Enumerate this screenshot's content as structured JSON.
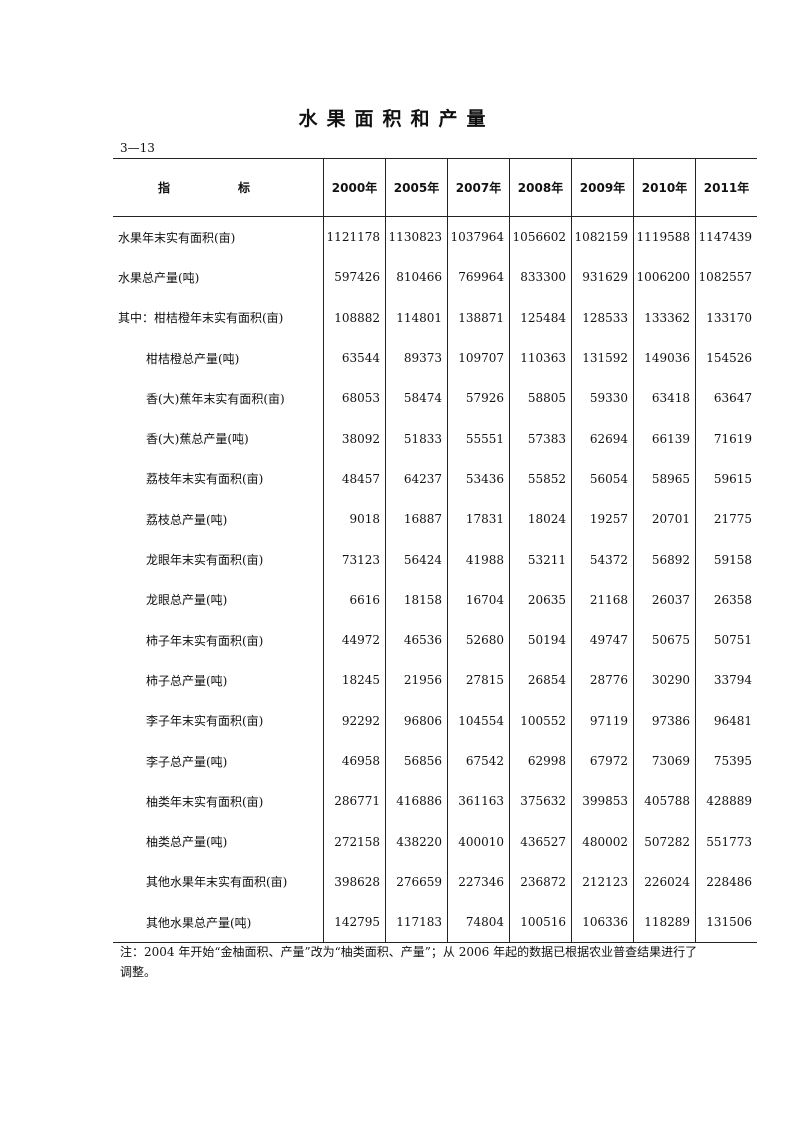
{
  "title": "水果面积和产量",
  "table_code": "3—13",
  "table": {
    "headers": [
      "指　标",
      "2000年",
      "2005年",
      "2007年",
      "2008年",
      "2009年",
      "2010年",
      "2011年"
    ],
    "rows": [
      {
        "label": "水果年末实有面积(亩)",
        "sub": false,
        "values": [
          "1121178",
          "1130823",
          "1037964",
          "1056602",
          "1082159",
          "1119588",
          "1147439"
        ]
      },
      {
        "label": "水果总产量(吨)",
        "sub": false,
        "values": [
          "597426",
          "810466",
          "769964",
          "833300",
          "931629",
          "1006200",
          "1082557"
        ]
      },
      {
        "label": "其中：柑桔橙年末实有面积(亩)",
        "sub": false,
        "values": [
          "108882",
          "114801",
          "138871",
          "125484",
          "128533",
          "133362",
          "133170"
        ]
      },
      {
        "label": "柑桔橙总产量(吨)",
        "sub": true,
        "values": [
          "63544",
          "89373",
          "109707",
          "110363",
          "131592",
          "149036",
          "154526"
        ]
      },
      {
        "label": "香(大)蕉年末实有面积(亩)",
        "sub": true,
        "values": [
          "68053",
          "58474",
          "57926",
          "58805",
          "59330",
          "63418",
          "63647"
        ]
      },
      {
        "label": "香(大)蕉总产量(吨)",
        "sub": true,
        "values": [
          "38092",
          "51833",
          "55551",
          "57383",
          "62694",
          "66139",
          "71619"
        ]
      },
      {
        "label": "荔枝年末实有面积(亩)",
        "sub": true,
        "values": [
          "48457",
          "64237",
          "53436",
          "55852",
          "56054",
          "58965",
          "59615"
        ]
      },
      {
        "label": "荔枝总产量(吨)",
        "sub": true,
        "values": [
          "9018",
          "16887",
          "17831",
          "18024",
          "19257",
          "20701",
          "21775"
        ]
      },
      {
        "label": "龙眼年末实有面积(亩)",
        "sub": true,
        "values": [
          "73123",
          "56424",
          "41988",
          "53211",
          "54372",
          "56892",
          "59158"
        ]
      },
      {
        "label": "龙眼总产量(吨)",
        "sub": true,
        "values": [
          "6616",
          "18158",
          "16704",
          "20635",
          "21168",
          "26037",
          "26358"
        ]
      },
      {
        "label": "柿子年末实有面积(亩)",
        "sub": true,
        "values": [
          "44972",
          "46536",
          "52680",
          "50194",
          "49747",
          "50675",
          "50751"
        ]
      },
      {
        "label": "柿子总产量(吨)",
        "sub": true,
        "values": [
          "18245",
          "21956",
          "27815",
          "26854",
          "28776",
          "30290",
          "33794"
        ]
      },
      {
        "label": "李子年末实有面积(亩)",
        "sub": true,
        "values": [
          "92292",
          "96806",
          "104554",
          "100552",
          "97119",
          "97386",
          "96481"
        ]
      },
      {
        "label": "李子总产量(吨)",
        "sub": true,
        "values": [
          "46958",
          "56856",
          "67542",
          "62998",
          "67972",
          "73069",
          "75395"
        ]
      },
      {
        "label": "柚类年末实有面积(亩)",
        "sub": true,
        "values": [
          "286771",
          "416886",
          "361163",
          "375632",
          "399853",
          "405788",
          "428889"
        ]
      },
      {
        "label": "柚类总产量(吨)",
        "sub": true,
        "values": [
          "272158",
          "438220",
          "400010",
          "436527",
          "480002",
          "507282",
          "551773"
        ]
      },
      {
        "label": "其他水果年末实有面积(亩)",
        "sub": true,
        "values": [
          "398628",
          "276659",
          "227346",
          "236872",
          "212123",
          "226024",
          "228486"
        ]
      },
      {
        "label": "其他水果总产量(吨)",
        "sub": true,
        "values": [
          "142795",
          "117183",
          "74804",
          "100516",
          "106336",
          "118289",
          "131506"
        ]
      }
    ]
  },
  "note": "注：2004 年开始“金柚面积、产量”改为“柚类面积、产量”；从 2006 年起的数据已根据农业普查结果进行了调整。"
}
